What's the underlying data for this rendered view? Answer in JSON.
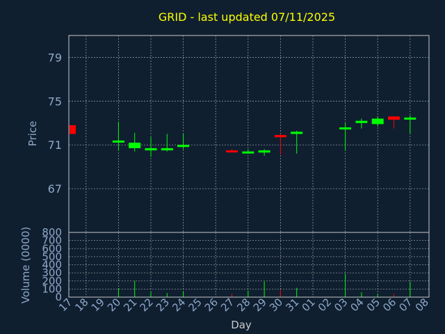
{
  "chart_data": {
    "type": "candlestick",
    "title": "GRID - last updated 07/11/2025",
    "xlabel": "Day",
    "ylabel": "Price",
    "volume_label": "Volume (0000)",
    "grid": true,
    "price_ylim": [
      63,
      81
    ],
    "price_yticks": [
      "67",
      "71",
      "75",
      "79"
    ],
    "volume_ylim": [
      0,
      800
    ],
    "volume_yticks": [
      "0",
      "100",
      "200",
      "300",
      "400",
      "500",
      "600",
      "700",
      "800"
    ],
    "x_ticks": [
      "17",
      "18",
      "19",
      "20",
      "21",
      "22",
      "23",
      "24",
      "25",
      "26",
      "27",
      "28",
      "29",
      "30",
      "31",
      "01",
      "02",
      "03",
      "04",
      "05",
      "06",
      "07",
      "08"
    ],
    "colors": {
      "background": "#0f1f30",
      "up": "#00ff00",
      "down": "#ff0000",
      "title": "#ffff00",
      "axis_text": "#8fa8c8",
      "grid": "#c8c8c8"
    },
    "candles": [
      {
        "day": "17",
        "open": 72.8,
        "high": 72.8,
        "low": 72.0,
        "close": 72.0
      },
      {
        "day": "20",
        "open": 71.3,
        "high": 73.1,
        "low": 70.5,
        "close": 71.4
      },
      {
        "day": "21",
        "open": 70.7,
        "high": 72.1,
        "low": 70.4,
        "close": 71.2
      },
      {
        "day": "22",
        "open": 70.5,
        "high": 71.7,
        "low": 69.9,
        "close": 70.7
      },
      {
        "day": "23",
        "open": 70.5,
        "high": 72.0,
        "low": 70.4,
        "close": 70.7
      },
      {
        "day": "24",
        "open": 70.9,
        "high": 72.0,
        "low": 70.6,
        "close": 71.0
      },
      {
        "day": "27",
        "open": 70.5,
        "high": 70.6,
        "low": 70.3,
        "close": 70.4
      },
      {
        "day": "28",
        "open": 70.3,
        "high": 70.6,
        "low": 70.3,
        "close": 70.4
      },
      {
        "day": "29",
        "open": 70.3,
        "high": 70.6,
        "low": 70.0,
        "close": 70.5
      },
      {
        "day": "30",
        "open": 71.9,
        "high": 72.0,
        "low": 70.1,
        "close": 71.7
      },
      {
        "day": "31",
        "open": 72.0,
        "high": 72.3,
        "low": 70.2,
        "close": 72.2
      },
      {
        "day": "03",
        "open": 72.5,
        "high": 73.0,
        "low": 70.5,
        "close": 72.6
      },
      {
        "day": "04",
        "open": 73.0,
        "high": 73.4,
        "low": 72.5,
        "close": 73.2
      },
      {
        "day": "05",
        "open": 72.9,
        "high": 73.6,
        "low": 72.7,
        "close": 73.4
      },
      {
        "day": "06",
        "open": 73.6,
        "high": 73.6,
        "low": 72.5,
        "close": 73.3
      },
      {
        "day": "07",
        "open": 73.4,
        "high": 73.7,
        "low": 72.0,
        "close": 73.5
      }
    ],
    "volume": [
      {
        "day": "17",
        "value": 0
      },
      {
        "day": "20",
        "value": 110
      },
      {
        "day": "21",
        "value": 200
      },
      {
        "day": "22",
        "value": 60
      },
      {
        "day": "23",
        "value": 50
      },
      {
        "day": "24",
        "value": 70
      },
      {
        "day": "27",
        "value": 40
      },
      {
        "day": "28",
        "value": 80
      },
      {
        "day": "29",
        "value": 195
      },
      {
        "day": "30",
        "value": 90
      },
      {
        "day": "31",
        "value": 115
      },
      {
        "day": "03",
        "value": 290
      },
      {
        "day": "04",
        "value": 60
      },
      {
        "day": "05",
        "value": 40
      },
      {
        "day": "06",
        "value": 40
      },
      {
        "day": "07",
        "value": 190
      }
    ]
  }
}
